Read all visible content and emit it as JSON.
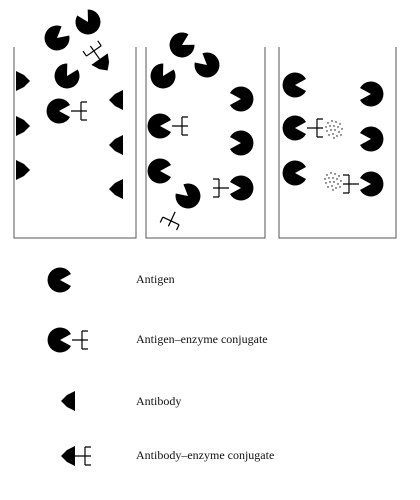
{
  "legend": {
    "antigen": "Antigen",
    "antigen_enzyme_conjugate": "Antigen–enzyme conjugate",
    "antibody": "Antibody",
    "antibody_enzyme_conjugate": "Antibody–enzyme conjugate"
  },
  "colors": {
    "ink": "#000000",
    "paper": "#ffffff",
    "wall": "#555555"
  }
}
